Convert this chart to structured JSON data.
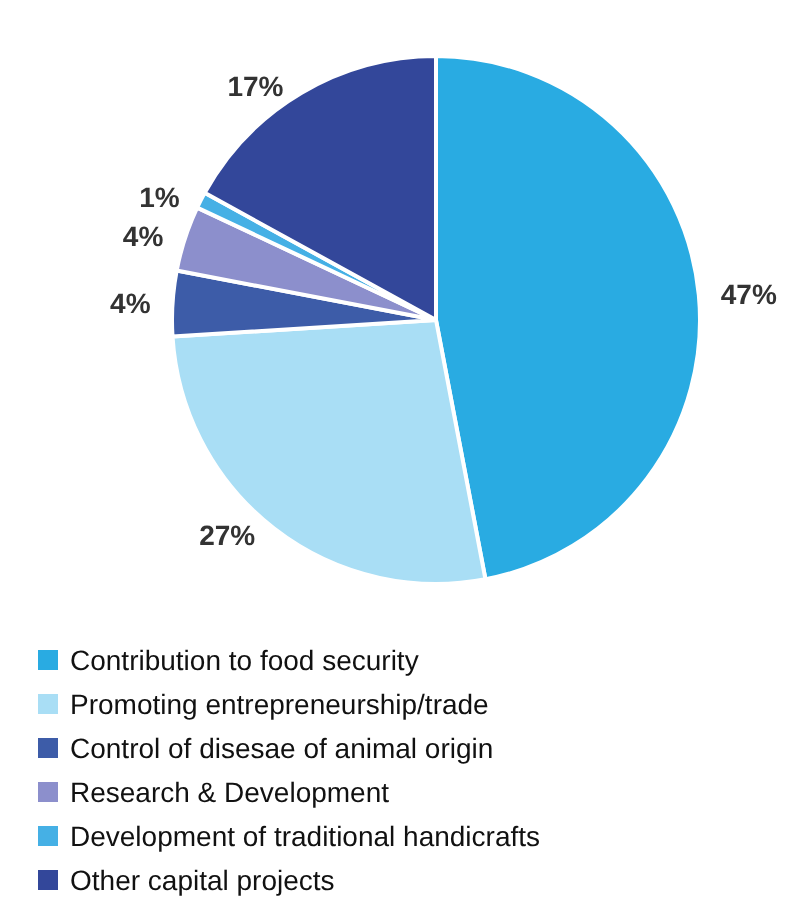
{
  "chart_data": {
    "type": "pie",
    "categories": [
      "Contribution to food security",
      "Promoting entrepreneurship/trade",
      "Control of disesae of animal origin",
      "Research & Development",
      "Development of traditional handicrafts",
      "Other capital projects"
    ],
    "values": [
      47,
      27,
      4,
      4,
      1,
      17
    ],
    "value_labels": [
      "47%",
      "27%",
      "4%",
      "4%",
      "1%",
      "17%"
    ],
    "colors": [
      "#29abe2",
      "#a9def5",
      "#3d5ca8",
      "#8c8fcc",
      "#45b0e5",
      "#33479a"
    ],
    "legend": "bottom"
  }
}
